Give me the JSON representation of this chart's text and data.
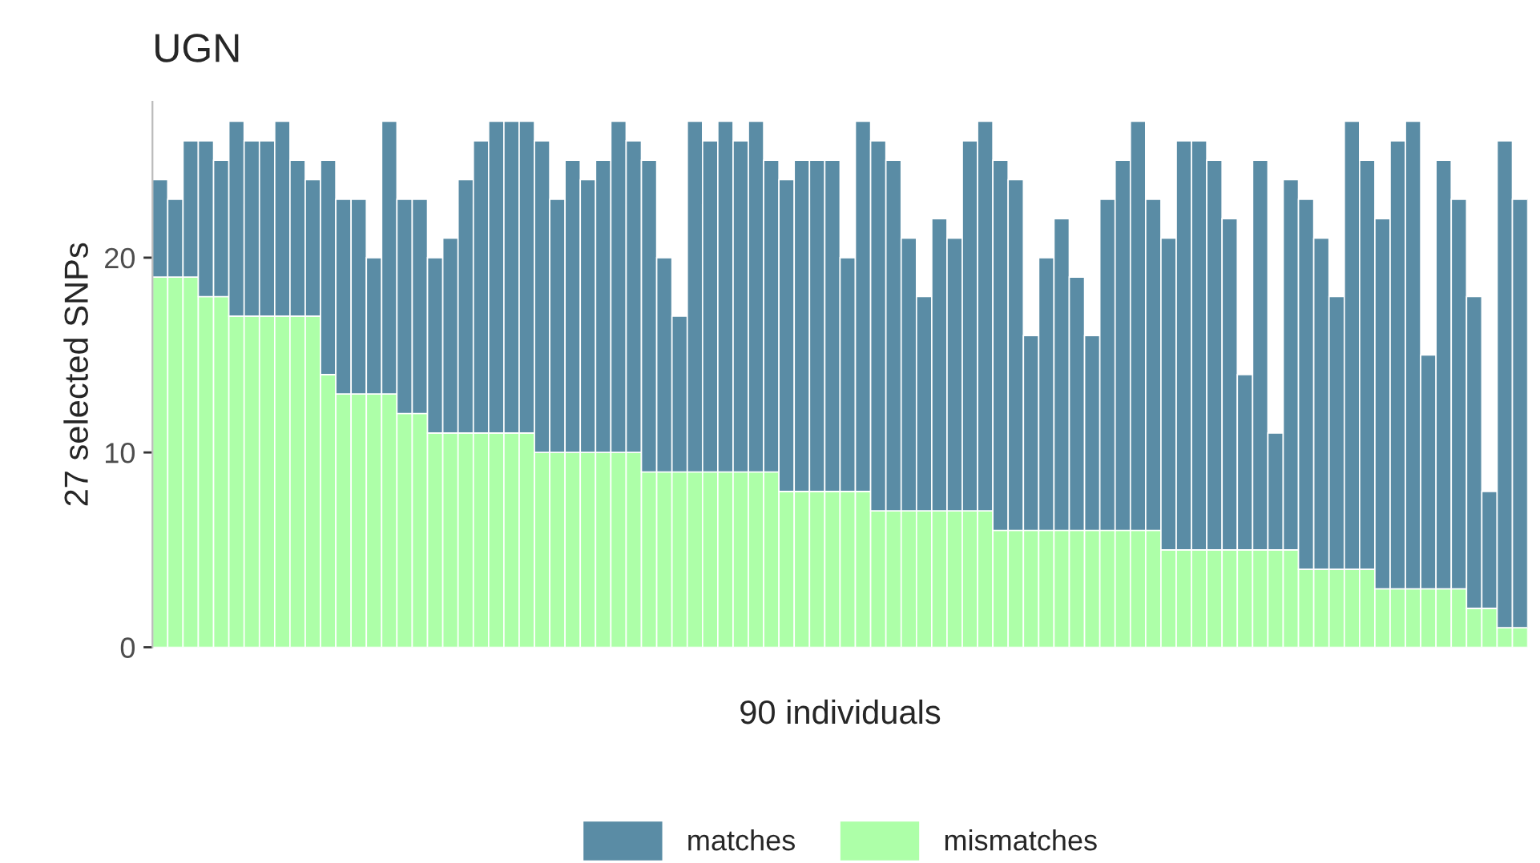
{
  "chart_data": {
    "type": "bar",
    "title": "UGN",
    "xlabel": "90 individuals",
    "ylabel": "27 selected SNPs",
    "categories": [
      null,
      null,
      null,
      null,
      null,
      null,
      null,
      null,
      null,
      null,
      null,
      null,
      null,
      null,
      null,
      null,
      null,
      null,
      null,
      null,
      null,
      null,
      null,
      null,
      null,
      null,
      null,
      null,
      null,
      null,
      null,
      null,
      null,
      null,
      null,
      null,
      null,
      null,
      null,
      null,
      null,
      null,
      null,
      null,
      null,
      null,
      null,
      null,
      null,
      null,
      null,
      null,
      null,
      null,
      null,
      null,
      null,
      null,
      null,
      null,
      null,
      null,
      null,
      null,
      null,
      null,
      null,
      null,
      null,
      null,
      null,
      null,
      null,
      null,
      null,
      null,
      null,
      null,
      null,
      null,
      null,
      null,
      null,
      null,
      null,
      null,
      null,
      null,
      null,
      null
    ],
    "stacked": true,
    "series": [
      {
        "name": "mismatches",
        "color": "#adffa8",
        "values": [
          19,
          19,
          19,
          18,
          18,
          17,
          17,
          17,
          17,
          17,
          17,
          14,
          13,
          13,
          13,
          13,
          12,
          12,
          11,
          11,
          11,
          11,
          11,
          11,
          11,
          10,
          10,
          10,
          10,
          10,
          10,
          10,
          9,
          9,
          9,
          9,
          9,
          9,
          9,
          9,
          9,
          8,
          8,
          8,
          8,
          8,
          8,
          7,
          7,
          7,
          7,
          7,
          7,
          7,
          7,
          6,
          6,
          6,
          6,
          6,
          6,
          6,
          6,
          6,
          6,
          6,
          5,
          5,
          5,
          5,
          5,
          5,
          5,
          5,
          5,
          4,
          4,
          4,
          4,
          4,
          3,
          3,
          3,
          3,
          3,
          3,
          2,
          2,
          1,
          1
        ]
      },
      {
        "name": "matches",
        "color": "#5a8ca5",
        "values": [
          5,
          4,
          7,
          8,
          7,
          10,
          9,
          9,
          10,
          8,
          7,
          11,
          10,
          10,
          7,
          14,
          11,
          11,
          9,
          10,
          13,
          15,
          16,
          16,
          16,
          16,
          13,
          15,
          14,
          15,
          17,
          16,
          16,
          11,
          8,
          18,
          17,
          18,
          17,
          18,
          16,
          16,
          17,
          17,
          17,
          12,
          19,
          19,
          18,
          14,
          11,
          15,
          14,
          19,
          20,
          19,
          18,
          10,
          14,
          16,
          13,
          10,
          17,
          19,
          21,
          17,
          16,
          21,
          21,
          20,
          17,
          9,
          20,
          6,
          19,
          19,
          17,
          14,
          23,
          21,
          19,
          23,
          24,
          12,
          22,
          20,
          16,
          6,
          25,
          22
        ]
      }
    ],
    "ylim": [
      0,
      28
    ],
    "yticks": [
      0,
      10,
      20
    ],
    "grid": false,
    "legend": "bottom"
  }
}
